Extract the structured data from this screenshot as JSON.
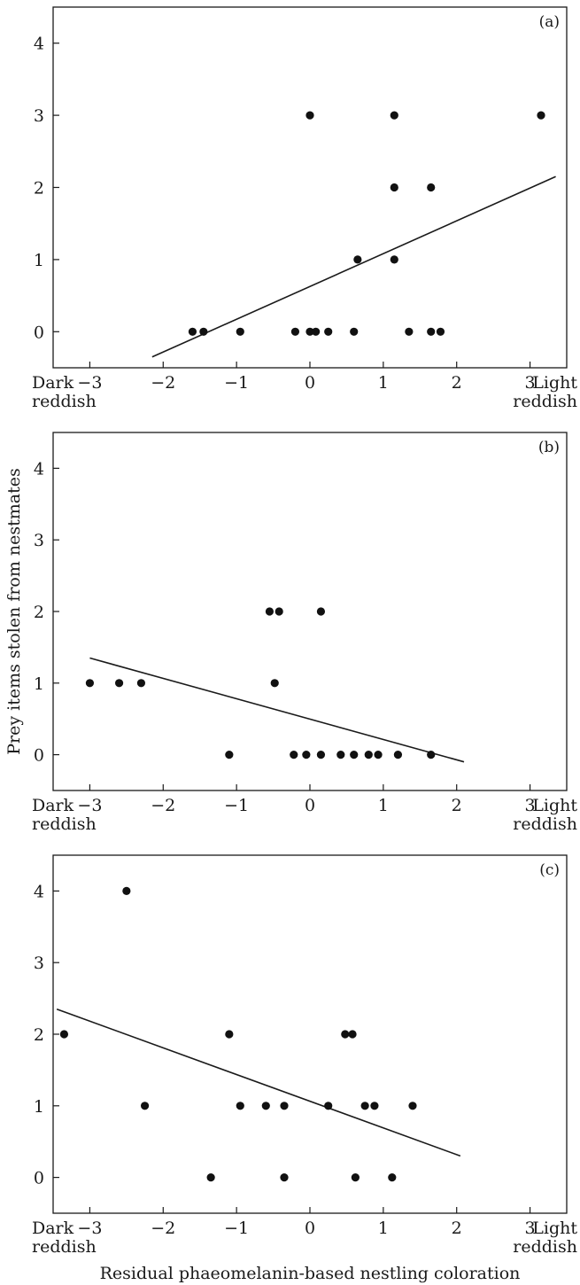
{
  "chart_data": [
    {
      "type": "scatter",
      "panel_label": "(a)",
      "xlim": [
        -3.5,
        3.5
      ],
      "ylim": [
        -0.5,
        4.5
      ],
      "x_ticks": [
        "−3",
        "−2",
        "−1",
        "0",
        "1",
        "2",
        "3"
      ],
      "y_ticks": [
        "0",
        "1",
        "2",
        "3",
        "4"
      ],
      "x_end_labels": {
        "left": [
          "Dark",
          "reddish"
        ],
        "right": [
          "Light",
          "reddish"
        ]
      },
      "points": [
        {
          "x": 0.0,
          "y": 3
        },
        {
          "x": 1.15,
          "y": 3
        },
        {
          "x": 3.15,
          "y": 3
        },
        {
          "x": 1.15,
          "y": 2
        },
        {
          "x": 1.65,
          "y": 2
        },
        {
          "x": 0.65,
          "y": 1
        },
        {
          "x": 1.15,
          "y": 1
        },
        {
          "x": -1.6,
          "y": 0
        },
        {
          "x": -1.45,
          "y": 0
        },
        {
          "x": -0.95,
          "y": 0
        },
        {
          "x": -0.2,
          "y": 0
        },
        {
          "x": 0.0,
          "y": 0
        },
        {
          "x": 0.08,
          "y": 0
        },
        {
          "x": 0.25,
          "y": 0
        },
        {
          "x": 0.6,
          "y": 0
        },
        {
          "x": 1.35,
          "y": 0
        },
        {
          "x": 1.65,
          "y": 0
        },
        {
          "x": 1.78,
          "y": 0
        }
      ],
      "fit_line": [
        {
          "x": -2.15,
          "y": -0.35
        },
        {
          "x": 3.35,
          "y": 2.15
        }
      ]
    },
    {
      "type": "scatter",
      "panel_label": "(b)",
      "xlim": [
        -3.5,
        3.5
      ],
      "ylim": [
        -0.5,
        4.5
      ],
      "x_ticks": [
        "−3",
        "−2",
        "−1",
        "0",
        "1",
        "2",
        "3"
      ],
      "y_ticks": [
        "0",
        "1",
        "2",
        "3",
        "4"
      ],
      "x_end_labels": {
        "left": [
          "Dark",
          "reddish"
        ],
        "right": [
          "Light",
          "reddish"
        ]
      },
      "ylabel": "Prey items stolen from nestmates",
      "points": [
        {
          "x": -3.0,
          "y": 1
        },
        {
          "x": -2.6,
          "y": 1
        },
        {
          "x": -2.3,
          "y": 1
        },
        {
          "x": -0.55,
          "y": 2
        },
        {
          "x": -0.42,
          "y": 2
        },
        {
          "x": 0.15,
          "y": 2
        },
        {
          "x": -0.48,
          "y": 1
        },
        {
          "x": -1.1,
          "y": 0
        },
        {
          "x": -0.22,
          "y": 0
        },
        {
          "x": -0.05,
          "y": 0
        },
        {
          "x": 0.15,
          "y": 0
        },
        {
          "x": 0.42,
          "y": 0
        },
        {
          "x": 0.6,
          "y": 0
        },
        {
          "x": 0.8,
          "y": 0
        },
        {
          "x": 0.93,
          "y": 0
        },
        {
          "x": 1.2,
          "y": 0
        },
        {
          "x": 1.65,
          "y": 0
        }
      ],
      "fit_line": [
        {
          "x": -3.0,
          "y": 1.35
        },
        {
          "x": 2.1,
          "y": -0.1
        }
      ]
    },
    {
      "type": "scatter",
      "panel_label": "(c)",
      "xlim": [
        -3.5,
        3.5
      ],
      "ylim": [
        -0.5,
        4.5
      ],
      "x_ticks": [
        "−3",
        "−2",
        "−1",
        "0",
        "1",
        "2",
        "3"
      ],
      "y_ticks": [
        "0",
        "1",
        "2",
        "3",
        "4"
      ],
      "x_end_labels": {
        "left": [
          "Dark",
          "reddish"
        ],
        "right": [
          "Light",
          "reddish"
        ]
      },
      "xlabel": "Residual phaeomelanin-based nestling coloration",
      "points": [
        {
          "x": -2.5,
          "y": 4
        },
        {
          "x": -3.35,
          "y": 2
        },
        {
          "x": -1.1,
          "y": 2
        },
        {
          "x": 0.48,
          "y": 2
        },
        {
          "x": 0.58,
          "y": 2
        },
        {
          "x": -2.25,
          "y": 1
        },
        {
          "x": -0.95,
          "y": 1
        },
        {
          "x": -0.6,
          "y": 1
        },
        {
          "x": -0.35,
          "y": 1
        },
        {
          "x": 0.25,
          "y": 1
        },
        {
          "x": 0.75,
          "y": 1
        },
        {
          "x": 0.88,
          "y": 1
        },
        {
          "x": 1.4,
          "y": 1
        },
        {
          "x": -1.35,
          "y": 0
        },
        {
          "x": -0.35,
          "y": 0
        },
        {
          "x": 0.62,
          "y": 0
        },
        {
          "x": 1.12,
          "y": 0
        }
      ],
      "fit_line": [
        {
          "x": -3.45,
          "y": 2.35
        },
        {
          "x": 2.05,
          "y": 0.3
        }
      ]
    }
  ]
}
